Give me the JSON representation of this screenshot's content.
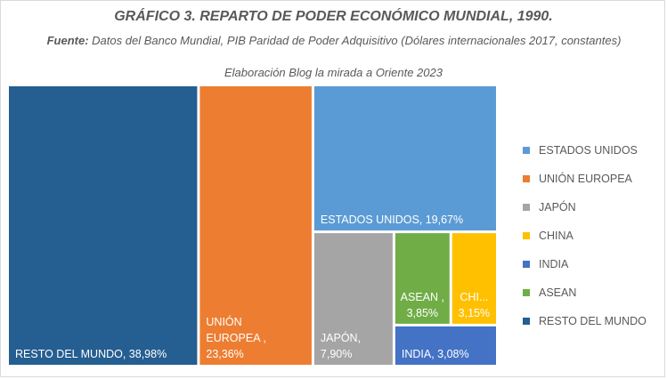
{
  "title": "GRÁFICO 3. REPARTO DE PODER ECONÓMICO MUNDIAL, 1990.",
  "subtitle": {
    "source_label": "Fuente:",
    "source_text": "Datos del Banco Mundial, PIB Paridad de Poder Adquisitivo (Dólares internacionales 2017, constantes)",
    "credit": "Elaboración Blog la mirada a Oriente 2023"
  },
  "chart_data": {
    "type": "treemap",
    "title": "GRÁFICO 3. REPARTO DE PODER ECONÓMICO MUNDIAL, 1990.",
    "series": [
      {
        "name": "RESTO DEL MUNDO",
        "value": 38.98,
        "display": "38,98%",
        "label_lines": [
          "RESTO DEL MUNDO, 38,98%"
        ],
        "color": "#255E91"
      },
      {
        "name": "UNIÓN EUROPEA",
        "value": 23.36,
        "display": "23,36%",
        "label_lines": [
          "UNIÓN",
          "EUROPEA ,",
          "23,36%"
        ],
        "color": "#ED7D31"
      },
      {
        "name": "ESTADOS UNIDOS",
        "value": 19.67,
        "display": "19,67%",
        "label_lines": [
          "ESTADOS UNIDOS, 19,67%"
        ],
        "color": "#5B9BD5"
      },
      {
        "name": "JAPÓN",
        "value": 7.9,
        "display": "7,90%",
        "label_lines": [
          "JAPÓN,",
          "7,90%"
        ],
        "color": "#A5A5A5"
      },
      {
        "name": "ASEAN",
        "value": 3.85,
        "display": "3,85%",
        "label_lines": [
          "ASEAN ,",
          "3,85%"
        ],
        "color": "#70AD47"
      },
      {
        "name": "CHINA",
        "value": 3.15,
        "display": "3,15%",
        "label_lines": [
          "CHI...",
          "3,15%"
        ],
        "color": "#FFC000"
      },
      {
        "name": "INDIA",
        "value": 3.08,
        "display": "3,08%",
        "label_lines": [
          "INDIA, 3,08%"
        ],
        "color": "#4472C4"
      }
    ],
    "legend": [
      "ESTADOS UNIDOS",
      "UNIÓN EUROPEA",
      "JAPÓN",
      "CHINA",
      "INDIA",
      "ASEAN",
      "RESTO DEL MUNDO"
    ],
    "legend_position": "right"
  }
}
